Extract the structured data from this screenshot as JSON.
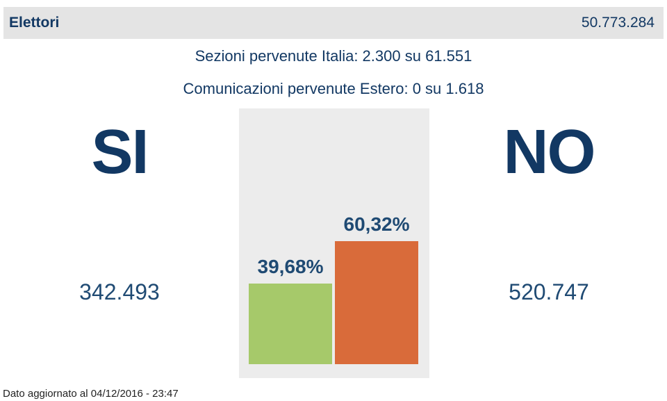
{
  "header": {
    "label": "Elettori",
    "value": "50.773.284"
  },
  "info": {
    "sezioni": "Sezioni pervenute Italia: 2.300 su 61.551",
    "estero": "Comunicazioni pervenute Estero: 0 su 1.618"
  },
  "colors": {
    "si": "#a6c96a",
    "no": "#d96b3a",
    "text": "#123863",
    "panel": "#ececec"
  },
  "chart_data": {
    "type": "bar",
    "categories": [
      "SI",
      "NO"
    ],
    "values": [
      39.68,
      60.32
    ],
    "value_labels": [
      "39,68%",
      "60,32%"
    ],
    "votes": [
      "342.493",
      "520.747"
    ],
    "title": "",
    "xlabel": "",
    "ylabel": "",
    "grid": false
  },
  "footer": {
    "updated": "Dato aggiornato al 04/12/2016 - 23:47"
  }
}
